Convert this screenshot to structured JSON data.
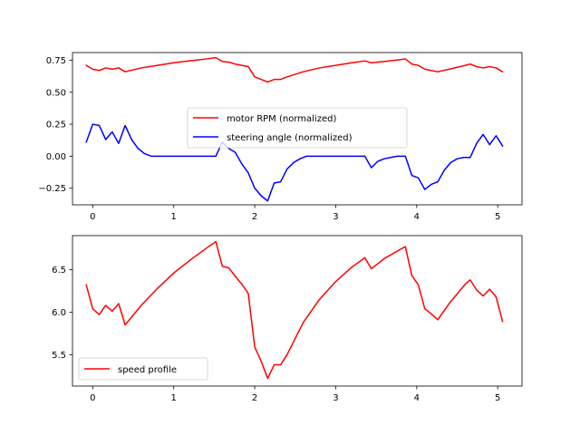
{
  "chart_data": [
    {
      "type": "line",
      "title": "",
      "xlabel": "",
      "ylabel": "",
      "xlim": [
        -0.25,
        5.3
      ],
      "ylim": [
        -0.38,
        0.81
      ],
      "xticks": [
        0,
        1,
        2,
        3,
        4,
        5
      ],
      "xtick_labels": [
        "0",
        "1",
        "2",
        "3",
        "4",
        "5"
      ],
      "yticks": [
        -0.25,
        0.0,
        0.25,
        0.5,
        0.75
      ],
      "ytick_labels": [
        "−0.25",
        "0.00",
        "0.25",
        "0.50",
        "0.75"
      ],
      "legend": "center",
      "series": [
        {
          "name": "motor RPM (normalized)",
          "color": "#ff0000",
          "x": [
            -0.08,
            0.0,
            0.08,
            0.16,
            0.24,
            0.32,
            0.4,
            0.6,
            0.8,
            1.0,
            1.2,
            1.4,
            1.52,
            1.6,
            1.68,
            1.76,
            1.84,
            1.92,
            2.0,
            2.08,
            2.16,
            2.24,
            2.32,
            2.4,
            2.6,
            2.8,
            3.0,
            3.2,
            3.36,
            3.44,
            3.6,
            3.8,
            3.86,
            3.94,
            4.02,
            4.1,
            4.18,
            4.26,
            4.4,
            4.6,
            4.66,
            4.74,
            4.82,
            4.9,
            4.98,
            5.06
          ],
          "y": [
            0.71,
            0.68,
            0.67,
            0.69,
            0.68,
            0.69,
            0.66,
            0.69,
            0.71,
            0.73,
            0.745,
            0.76,
            0.77,
            0.74,
            0.735,
            0.72,
            0.71,
            0.7,
            0.62,
            0.6,
            0.58,
            0.6,
            0.6,
            0.62,
            0.66,
            0.69,
            0.71,
            0.73,
            0.745,
            0.73,
            0.74,
            0.755,
            0.76,
            0.72,
            0.71,
            0.68,
            0.67,
            0.66,
            0.68,
            0.71,
            0.72,
            0.7,
            0.69,
            0.7,
            0.69,
            0.66
          ]
        },
        {
          "name": "steering angle (normalized)",
          "color": "#0000ff",
          "x": [
            -0.08,
            0.0,
            0.08,
            0.16,
            0.24,
            0.32,
            0.4,
            0.48,
            0.56,
            0.64,
            0.72,
            0.8,
            1.0,
            1.2,
            1.4,
            1.52,
            1.6,
            1.68,
            1.76,
            1.84,
            1.92,
            2.0,
            2.08,
            2.16,
            2.24,
            2.32,
            2.4,
            2.48,
            2.56,
            2.64,
            2.72,
            2.8,
            3.0,
            3.2,
            3.36,
            3.44,
            3.52,
            3.6,
            3.68,
            3.76,
            3.86,
            3.94,
            4.02,
            4.1,
            4.18,
            4.26,
            4.34,
            4.42,
            4.5,
            4.58,
            4.66,
            4.74,
            4.82,
            4.9,
            4.98,
            5.06
          ],
          "y": [
            0.11,
            0.25,
            0.24,
            0.13,
            0.19,
            0.1,
            0.24,
            0.13,
            0.06,
            0.02,
            0.0,
            0.0,
            0.0,
            0.0,
            0.0,
            0.0,
            0.11,
            0.06,
            0.03,
            -0.06,
            -0.13,
            -0.25,
            -0.31,
            -0.35,
            -0.21,
            -0.2,
            -0.1,
            -0.05,
            -0.02,
            0.0,
            0.0,
            0.0,
            0.0,
            0.0,
            0.0,
            -0.09,
            -0.04,
            -0.02,
            -0.01,
            0.0,
            0.0,
            -0.15,
            -0.17,
            -0.26,
            -0.22,
            -0.2,
            -0.11,
            -0.05,
            -0.02,
            -0.01,
            -0.01,
            0.1,
            0.17,
            0.09,
            0.16,
            0.08
          ]
        }
      ]
    },
    {
      "type": "line",
      "title": "",
      "xlabel": "",
      "ylabel": "",
      "xlim": [
        -0.25,
        5.3
      ],
      "ylim": [
        5.13,
        6.9
      ],
      "xticks": [
        0,
        1,
        2,
        3,
        4,
        5
      ],
      "xtick_labels": [
        "0",
        "1",
        "2",
        "3",
        "4",
        "5"
      ],
      "yticks": [
        5.5,
        6.0,
        6.5
      ],
      "ytick_labels": [
        "5.5",
        "6.0",
        "6.5"
      ],
      "legend": "lower left",
      "series": [
        {
          "name": "speed profile",
          "color": "#ff0000",
          "x": [
            -0.08,
            0.0,
            0.08,
            0.16,
            0.24,
            0.32,
            0.4,
            0.6,
            0.8,
            1.0,
            1.2,
            1.4,
            1.52,
            1.6,
            1.68,
            1.76,
            1.84,
            1.92,
            2.0,
            2.08,
            2.16,
            2.24,
            2.32,
            2.4,
            2.6,
            2.8,
            3.0,
            3.2,
            3.36,
            3.44,
            3.6,
            3.8,
            3.86,
            3.94,
            4.02,
            4.1,
            4.18,
            4.26,
            4.4,
            4.6,
            4.66,
            4.74,
            4.82,
            4.9,
            4.98,
            5.06
          ],
          "y": [
            6.32,
            6.04,
            5.97,
            6.08,
            6.01,
            6.1,
            5.85,
            6.08,
            6.28,
            6.46,
            6.61,
            6.75,
            6.83,
            6.54,
            6.52,
            6.42,
            6.33,
            6.22,
            5.59,
            5.42,
            5.22,
            5.38,
            5.38,
            5.5,
            5.88,
            6.15,
            6.36,
            6.53,
            6.64,
            6.51,
            6.63,
            6.74,
            6.77,
            6.43,
            6.32,
            6.04,
            5.98,
            5.91,
            6.1,
            6.33,
            6.38,
            6.26,
            6.19,
            6.27,
            6.18,
            5.89
          ]
        }
      ]
    }
  ]
}
